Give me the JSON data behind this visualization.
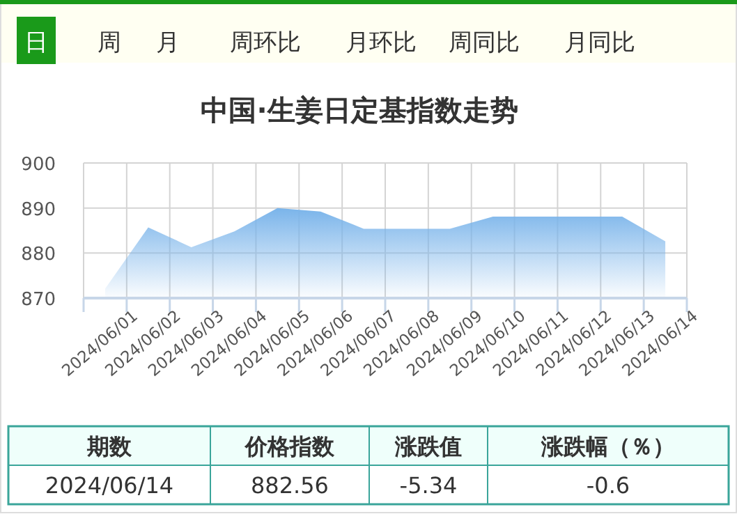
{
  "chart_data": {
    "type": "area",
    "title": "中国·生姜日定基指数走势",
    "categories": [
      "2024/06/01",
      "2024/06/02",
      "2024/06/03",
      "2024/06/04",
      "2024/06/05",
      "2024/06/06",
      "2024/06/07",
      "2024/06/08",
      "2024/06/09",
      "2024/06/10",
      "2024/06/11",
      "2024/06/12",
      "2024/06/13",
      "2024/06/14"
    ],
    "values": [
      872.1,
      885.7,
      881.3,
      884.8,
      890.0,
      889.2,
      885.4,
      885.4,
      885.4,
      888.1,
      888.1,
      888.1,
      888.1,
      882.6
    ],
    "color": "#7ab4ea",
    "ylim": [
      870,
      900
    ],
    "yticks": [
      870,
      880,
      890,
      900
    ],
    "grid": true,
    "legend": false,
    "annotations": [
      "日",
      "周",
      "月",
      "周环比",
      "月环比",
      "周同比",
      "月同比",
      "期数",
      "价格指数",
      "涨跌值",
      "涨跌幅（％）",
      "2024/06/14",
      "882.56",
      "-5.34",
      "-0.6"
    ]
  }
}
